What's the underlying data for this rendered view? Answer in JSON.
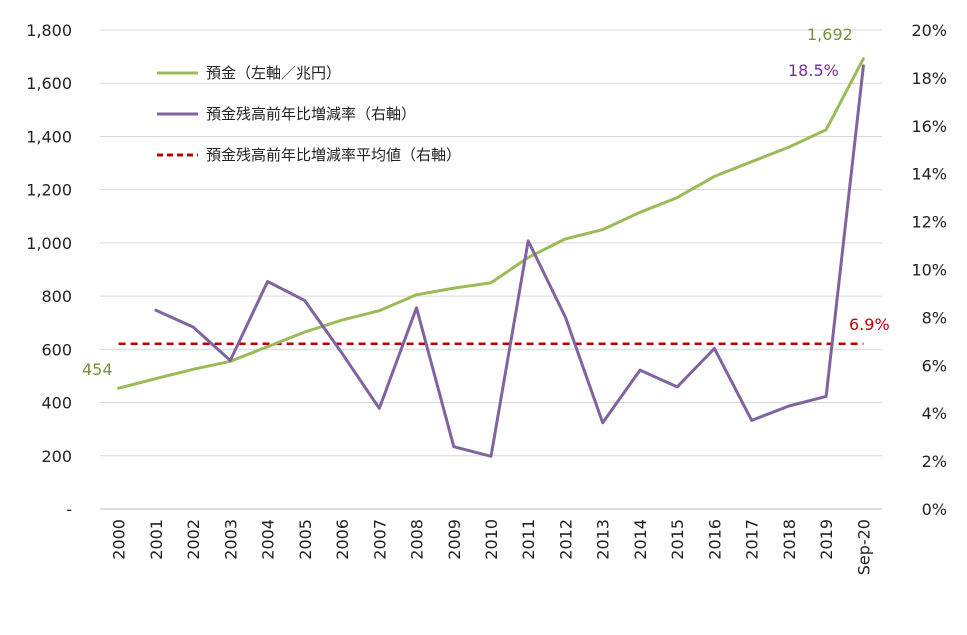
{
  "chart_data": {
    "type": "line",
    "categories": [
      "2000",
      "2001",
      "2002",
      "2003",
      "2004",
      "2005",
      "2006",
      "2007",
      "2008",
      "2009",
      "2010",
      "2011",
      "2012",
      "2013",
      "2014",
      "2015",
      "2016",
      "2017",
      "2018",
      "2019",
      "Sep-20"
    ],
    "left_axis": {
      "ylim": [
        0,
        1800
      ],
      "ticks": [
        0,
        200,
        400,
        600,
        800,
        1000,
        1200,
        1400,
        1600,
        1800
      ],
      "tick_labels": [
        "-",
        "200",
        "400",
        "600",
        "800",
        "1,000",
        "1,200",
        "1,400",
        "1,600",
        "1,800"
      ]
    },
    "right_axis": {
      "ylim": [
        0,
        20
      ],
      "ticks": [
        0,
        2,
        4,
        6,
        8,
        10,
        12,
        14,
        16,
        18,
        20
      ],
      "tick_labels": [
        "0%",
        "2%",
        "4%",
        "6%",
        "8%",
        "10%",
        "12%",
        "14%",
        "16%",
        "18%",
        "20%"
      ]
    },
    "grid": true,
    "legend_position": "top-left",
    "series": [
      {
        "name": "預金（左軸／兆円）",
        "axis": "left",
        "color": "#9bbb59",
        "style": "solid",
        "values": [
          454,
          490,
          525,
          555,
          610,
          665,
          710,
          745,
          805,
          830,
          850,
          945,
          1015,
          1050,
          1115,
          1170,
          1250,
          1305,
          1360,
          1425,
          1692
        ]
      },
      {
        "name": "預金残高前年比増減率（右軸）",
        "axis": "right",
        "color": "#8064a2",
        "style": "solid",
        "values": [
          null,
          8.3,
          7.6,
          6.2,
          9.5,
          8.7,
          6.5,
          4.2,
          8.4,
          2.6,
          2.2,
          11.2,
          8.0,
          3.6,
          5.8,
          5.1,
          6.7,
          3.7,
          4.3,
          4.7,
          18.5
        ]
      },
      {
        "name": "預金残高前年比増減率平均値（右軸）",
        "axis": "right",
        "color": "#c00000",
        "style": "dashed",
        "values": [
          6.9,
          6.9,
          6.9,
          6.9,
          6.9,
          6.9,
          6.9,
          6.9,
          6.9,
          6.9,
          6.9,
          6.9,
          6.9,
          6.9,
          6.9,
          6.9,
          6.9,
          6.9,
          6.9,
          6.9,
          6.9
        ]
      }
    ],
    "annotations": {
      "first_deposit": "454",
      "last_deposit": "1,692",
      "last_rate": "18.5%",
      "average_rate": "6.9%"
    }
  }
}
